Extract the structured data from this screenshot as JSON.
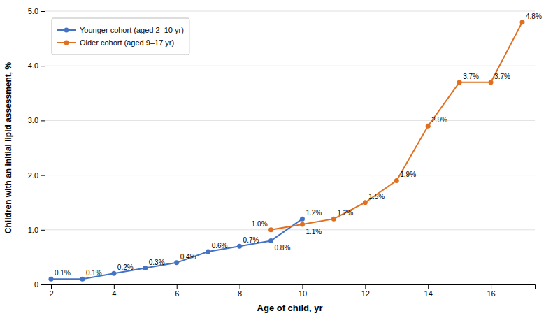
{
  "chart_data": {
    "type": "line",
    "x_label": "Age of child, yr",
    "y_label": "Children with an initial lipid assessment, %",
    "series": [
      {
        "name": "Younger cohort (aged 2–10 yr)",
        "color": "#4472C4",
        "marker": "circle",
        "x": [
          2,
          3,
          4,
          5,
          6,
          7,
          8,
          9,
          10
        ],
        "values": [
          0.1,
          0.1,
          0.2,
          0.3,
          0.4,
          0.6,
          0.7,
          0.8,
          1.2
        ],
        "value_labels": [
          "0.1%",
          "0.1%",
          "0.2%",
          "0.3%",
          "0.4%",
          "0.6%",
          "0.7%",
          "0.8%",
          "1.2%"
        ]
      },
      {
        "name": "Older cohort (aged 9–17 yr)",
        "color": "#E07020",
        "marker": "circle",
        "x": [
          9,
          10,
          11,
          12,
          13,
          14,
          15,
          16,
          17
        ],
        "values": [
          1.0,
          1.1,
          1.2,
          1.5,
          1.9,
          2.9,
          3.7,
          3.7,
          4.8
        ],
        "value_labels": [
          "1.0%",
          "1.1%",
          "1.2%",
          "1.5%",
          "1.9%",
          "2.9%",
          "3.7%",
          "3.7%",
          "4.8%"
        ]
      }
    ],
    "xlim": [
      1.8,
      17.4
    ],
    "xticks": [
      2,
      4,
      6,
      8,
      10,
      12,
      14,
      16
    ],
    "ylim": [
      0,
      5.0
    ],
    "yticks": [
      0,
      {
        "value": 1.0,
        "label": "1.0"
      },
      {
        "value": 2.0,
        "label": "2.0"
      },
      {
        "value": 3.0,
        "label": "3.0"
      },
      {
        "value": 4.0,
        "label": "4.0"
      },
      {
        "value": 5.0,
        "label": "5.0"
      }
    ],
    "grid": "y",
    "legend": "upper left",
    "data_labels": true
  }
}
